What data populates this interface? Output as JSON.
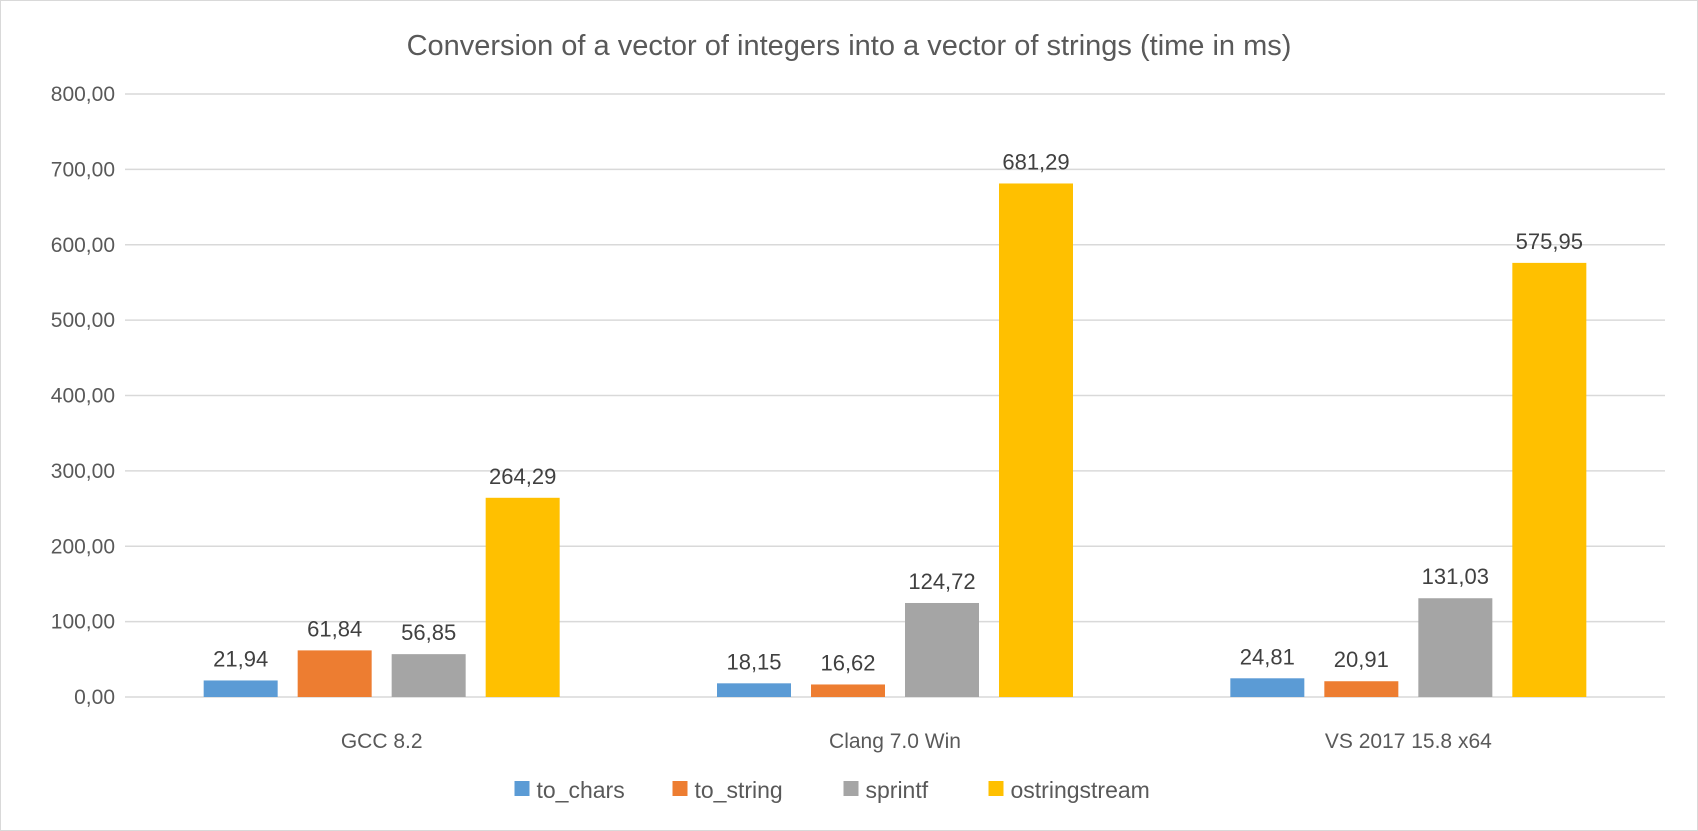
{
  "chart_data": {
    "type": "bar",
    "title": "Conversion of a vector of integers into a vector of strings (time in ms)",
    "xlabel": "",
    "ylabel": "",
    "categories": [
      "GCC 8.2",
      "Clang 7.0 Win",
      "VS 2017 15.8 x64"
    ],
    "series": [
      {
        "name": "to_chars",
        "color": "#5b9bd5",
        "values": [
          21.94,
          18.15,
          24.81
        ],
        "labels": [
          "21,94",
          "18,15",
          "24,81"
        ]
      },
      {
        "name": "to_string",
        "color": "#ed7d31",
        "values": [
          61.84,
          16.62,
          20.91
        ],
        "labels": [
          "61,84",
          "16,62",
          "20,91"
        ]
      },
      {
        "name": "sprintf",
        "color": "#a5a5a5",
        "values": [
          56.85,
          124.72,
          131.03
        ],
        "labels": [
          "56,85",
          "124,72",
          "131,03"
        ]
      },
      {
        "name": "ostringstream",
        "color": "#ffc000",
        "values": [
          264.29,
          681.29,
          575.95
        ],
        "labels": [
          "264,29",
          "681,29",
          "575,95"
        ]
      }
    ],
    "ylim": [
      0,
      800
    ],
    "yticks": [
      0,
      100,
      200,
      300,
      400,
      500,
      600,
      700,
      800
    ],
    "ytick_labels": [
      "0,00",
      "100,00",
      "200,00",
      "300,00",
      "400,00",
      "500,00",
      "600,00",
      "700,00",
      "800,00"
    ],
    "grid": true,
    "legend": "bottom"
  }
}
